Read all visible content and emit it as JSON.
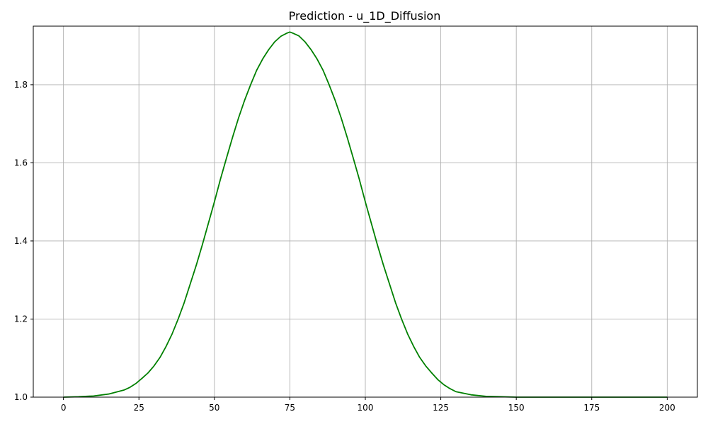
{
  "chart_data": {
    "type": "line",
    "title": "Prediction - u_1D_Diffusion",
    "xlabel": "",
    "ylabel": "",
    "xlim": [
      -10,
      210
    ],
    "ylim": [
      1.0,
      1.95
    ],
    "x_ticks": [
      0,
      25,
      50,
      75,
      100,
      125,
      150,
      175,
      200
    ],
    "y_ticks": [
      1.0,
      1.2,
      1.4,
      1.6,
      1.8
    ],
    "grid": true,
    "series": [
      {
        "color": "#008000",
        "x": [
          0,
          5,
          10,
          15,
          20,
          22,
          24,
          26,
          28,
          30,
          32,
          34,
          36,
          38,
          40,
          42,
          44,
          46,
          48,
          50,
          52,
          54,
          56,
          58,
          60,
          62,
          64,
          66,
          68,
          70,
          72,
          74,
          75,
          76,
          78,
          80,
          82,
          84,
          86,
          88,
          90,
          92,
          94,
          96,
          98,
          100,
          102,
          104,
          106,
          108,
          110,
          112,
          114,
          116,
          118,
          120,
          122,
          124,
          126,
          128,
          130,
          135,
          140,
          145,
          150,
          175,
          200
        ],
        "y": [
          1.0,
          1.001,
          1.003,
          1.008,
          1.018,
          1.025,
          1.035,
          1.048,
          1.062,
          1.08,
          1.102,
          1.13,
          1.162,
          1.2,
          1.242,
          1.29,
          1.338,
          1.39,
          1.445,
          1.5,
          1.558,
          1.612,
          1.665,
          1.715,
          1.76,
          1.8,
          1.837,
          1.866,
          1.89,
          1.91,
          1.924,
          1.932,
          1.935,
          1.932,
          1.925,
          1.91,
          1.89,
          1.866,
          1.837,
          1.8,
          1.76,
          1.715,
          1.665,
          1.612,
          1.558,
          1.5,
          1.445,
          1.39,
          1.338,
          1.29,
          1.242,
          1.2,
          1.162,
          1.13,
          1.102,
          1.08,
          1.062,
          1.045,
          1.032,
          1.022,
          1.014,
          1.006,
          1.002,
          1.001,
          1.0,
          1.0,
          1.0
        ]
      }
    ]
  }
}
